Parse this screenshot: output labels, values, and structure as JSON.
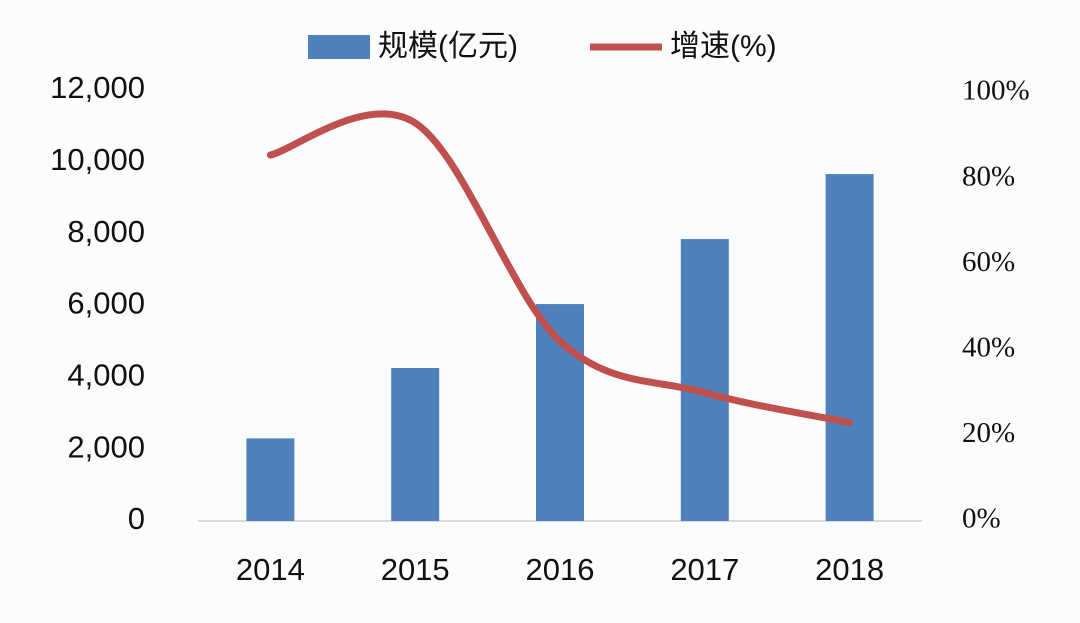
{
  "chart_data": {
    "type": "bar-line",
    "categories": [
      "2014",
      "2015",
      "2016",
      "2017",
      "2018"
    ],
    "series": [
      {
        "name": "规模(亿元)",
        "type": "bar",
        "color": "#4f81bd",
        "values": [
          2300,
          4260,
          6040,
          7850,
          9660
        ]
      },
      {
        "name": "增速(%)",
        "type": "line",
        "axis": "y2",
        "smooth": true,
        "color": "#c0504d",
        "values": [
          85.5,
          93,
          42,
          30,
          23
        ]
      }
    ],
    "ylim": [
      0,
      12000
    ],
    "yticks": [
      0,
      {
        "value": 2000,
        "label": "2,000"
      },
      {
        "value": 4000,
        "label": "4,000"
      },
      {
        "value": 6000,
        "label": "6,000"
      },
      {
        "value": 8000,
        "label": "8,000"
      },
      {
        "value": 10000,
        "label": "10,000"
      },
      {
        "value": 12000,
        "label": "12,000"
      }
    ],
    "y2lim": [
      0,
      100
    ],
    "y2ticks": [
      {
        "value": 0,
        "label": "0%"
      },
      {
        "value": 20,
        "label": "20%"
      },
      {
        "value": 40,
        "label": "40%"
      },
      {
        "value": 60,
        "label": "60%"
      },
      {
        "value": 80,
        "label": "80%"
      },
      {
        "value": 100,
        "label": "100%"
      }
    ],
    "legend": "top"
  }
}
